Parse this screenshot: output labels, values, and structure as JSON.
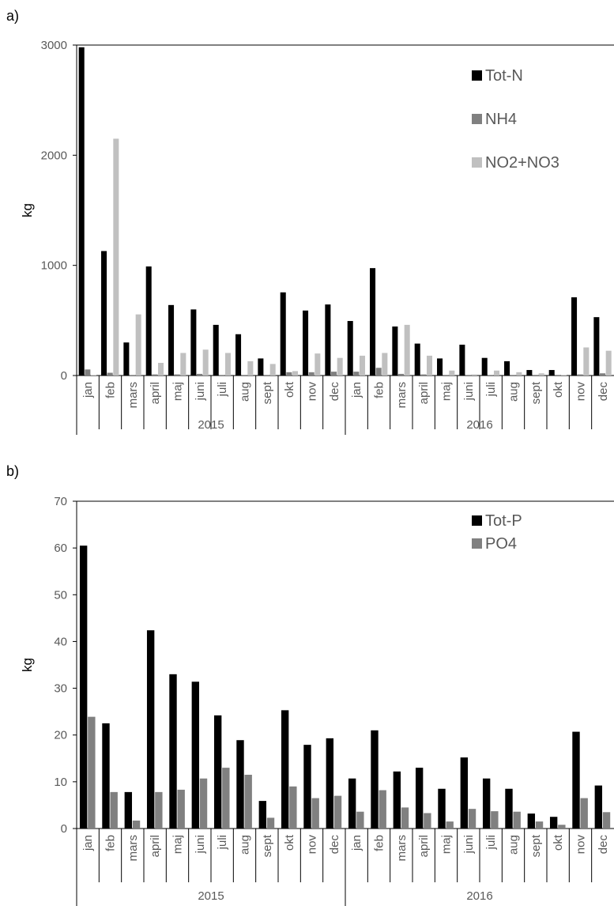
{
  "chart_data": [
    {
      "type": "bar",
      "panel_label": "a)",
      "ylabel": "kg",
      "ylim": [
        0,
        3000
      ],
      "yticks": [
        0,
        1000,
        2000,
        3000
      ],
      "groups": [
        "2015",
        "2016"
      ],
      "categories": [
        "jan",
        "feb",
        "mars",
        "april",
        "maj",
        "juni",
        "juli",
        "aug",
        "sept",
        "okt",
        "nov",
        "dec",
        "jan",
        "feb",
        "mars",
        "april",
        "maj",
        "juni",
        "juli",
        "aug",
        "sept",
        "okt",
        "nov",
        "dec"
      ],
      "legend_position": "top-right",
      "series": [
        {
          "name": "Tot-N",
          "color": "#000000",
          "values": [
            2980,
            1130,
            300,
            990,
            640,
            600,
            460,
            375,
            155,
            755,
            590,
            645,
            495,
            975,
            445,
            290,
            155,
            280,
            160,
            130,
            50,
            50,
            710,
            530
          ]
        },
        {
          "name": "NH4",
          "color": "#808080",
          "values": [
            55,
            25,
            5,
            10,
            10,
            15,
            5,
            5,
            5,
            30,
            30,
            35,
            35,
            70,
            15,
            10,
            5,
            5,
            5,
            5,
            2,
            2,
            10,
            20
          ]
        },
        {
          "name": "NO2+NO3",
          "color": "#c0c0c0",
          "values": [
            5,
            2150,
            555,
            115,
            205,
            235,
            205,
            130,
            105,
            40,
            200,
            160,
            180,
            205,
            460,
            180,
            45,
            10,
            45,
            30,
            20,
            5,
            255,
            225
          ]
        }
      ]
    },
    {
      "type": "bar",
      "panel_label": "b)",
      "ylabel": "kg",
      "ylim": [
        0,
        70
      ],
      "yticks": [
        0,
        10,
        20,
        30,
        40,
        50,
        60,
        70
      ],
      "groups": [
        "2015",
        "2016"
      ],
      "categories": [
        "jan",
        "feb",
        "mars",
        "april",
        "maj",
        "juni",
        "juli",
        "aug",
        "sept",
        "okt",
        "nov",
        "dec",
        "jan",
        "feb",
        "mars",
        "april",
        "maj",
        "juni",
        "juli",
        "aug",
        "sept",
        "okt",
        "nov",
        "dec"
      ],
      "legend_position": "top-right",
      "series": [
        {
          "name": "Tot-P",
          "color": "#000000",
          "values": [
            60.5,
            22.5,
            7.8,
            42.4,
            33.0,
            31.4,
            24.2,
            18.9,
            5.9,
            25.3,
            17.9,
            19.3,
            10.7,
            21.0,
            12.2,
            13.0,
            8.5,
            15.2,
            10.7,
            8.5,
            3.2,
            2.5,
            20.7,
            9.2
          ]
        },
        {
          "name": "PO4",
          "color": "#808080",
          "values": [
            23.9,
            7.8,
            1.7,
            7.8,
            8.3,
            10.7,
            13.0,
            11.5,
            2.3,
            9.0,
            6.5,
            7.0,
            3.6,
            8.2,
            4.5,
            3.3,
            1.5,
            4.2,
            3.7,
            3.6,
            1.5,
            0.8,
            6.5,
            3.5
          ]
        }
      ]
    }
  ]
}
